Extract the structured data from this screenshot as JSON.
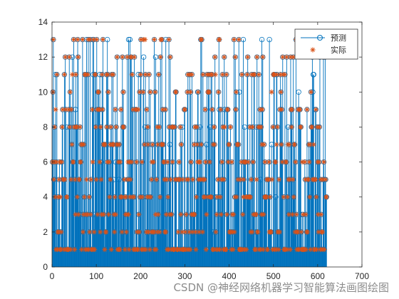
{
  "chart_data": {
    "type": "stem",
    "title": "",
    "xlabel": "",
    "ylabel": "",
    "xlim": [
      0,
      700
    ],
    "ylim": [
      0,
      14
    ],
    "xticks": [
      0,
      100,
      200,
      300,
      400,
      500,
      600,
      700
    ],
    "yticks": [
      0,
      2,
      4,
      6,
      8,
      10,
      12,
      14
    ],
    "x": {
      "start": 1,
      "end": 620,
      "step": 1
    },
    "value_set": [
      1,
      2,
      3,
      4,
      5,
      6,
      7,
      8,
      9,
      10,
      11,
      12,
      13
    ],
    "series": [
      {
        "name": "预测",
        "style": "stem-circle",
        "color": "#0072BD",
        "values": []
      },
      {
        "name": "实际",
        "style": "asterisk",
        "color": "#D95319",
        "values": []
      }
    ],
    "legend_position": "top-right",
    "grid": false,
    "box": true
  },
  "watermark": "CSDN @神经网络机器学习智能算法画图绘图"
}
